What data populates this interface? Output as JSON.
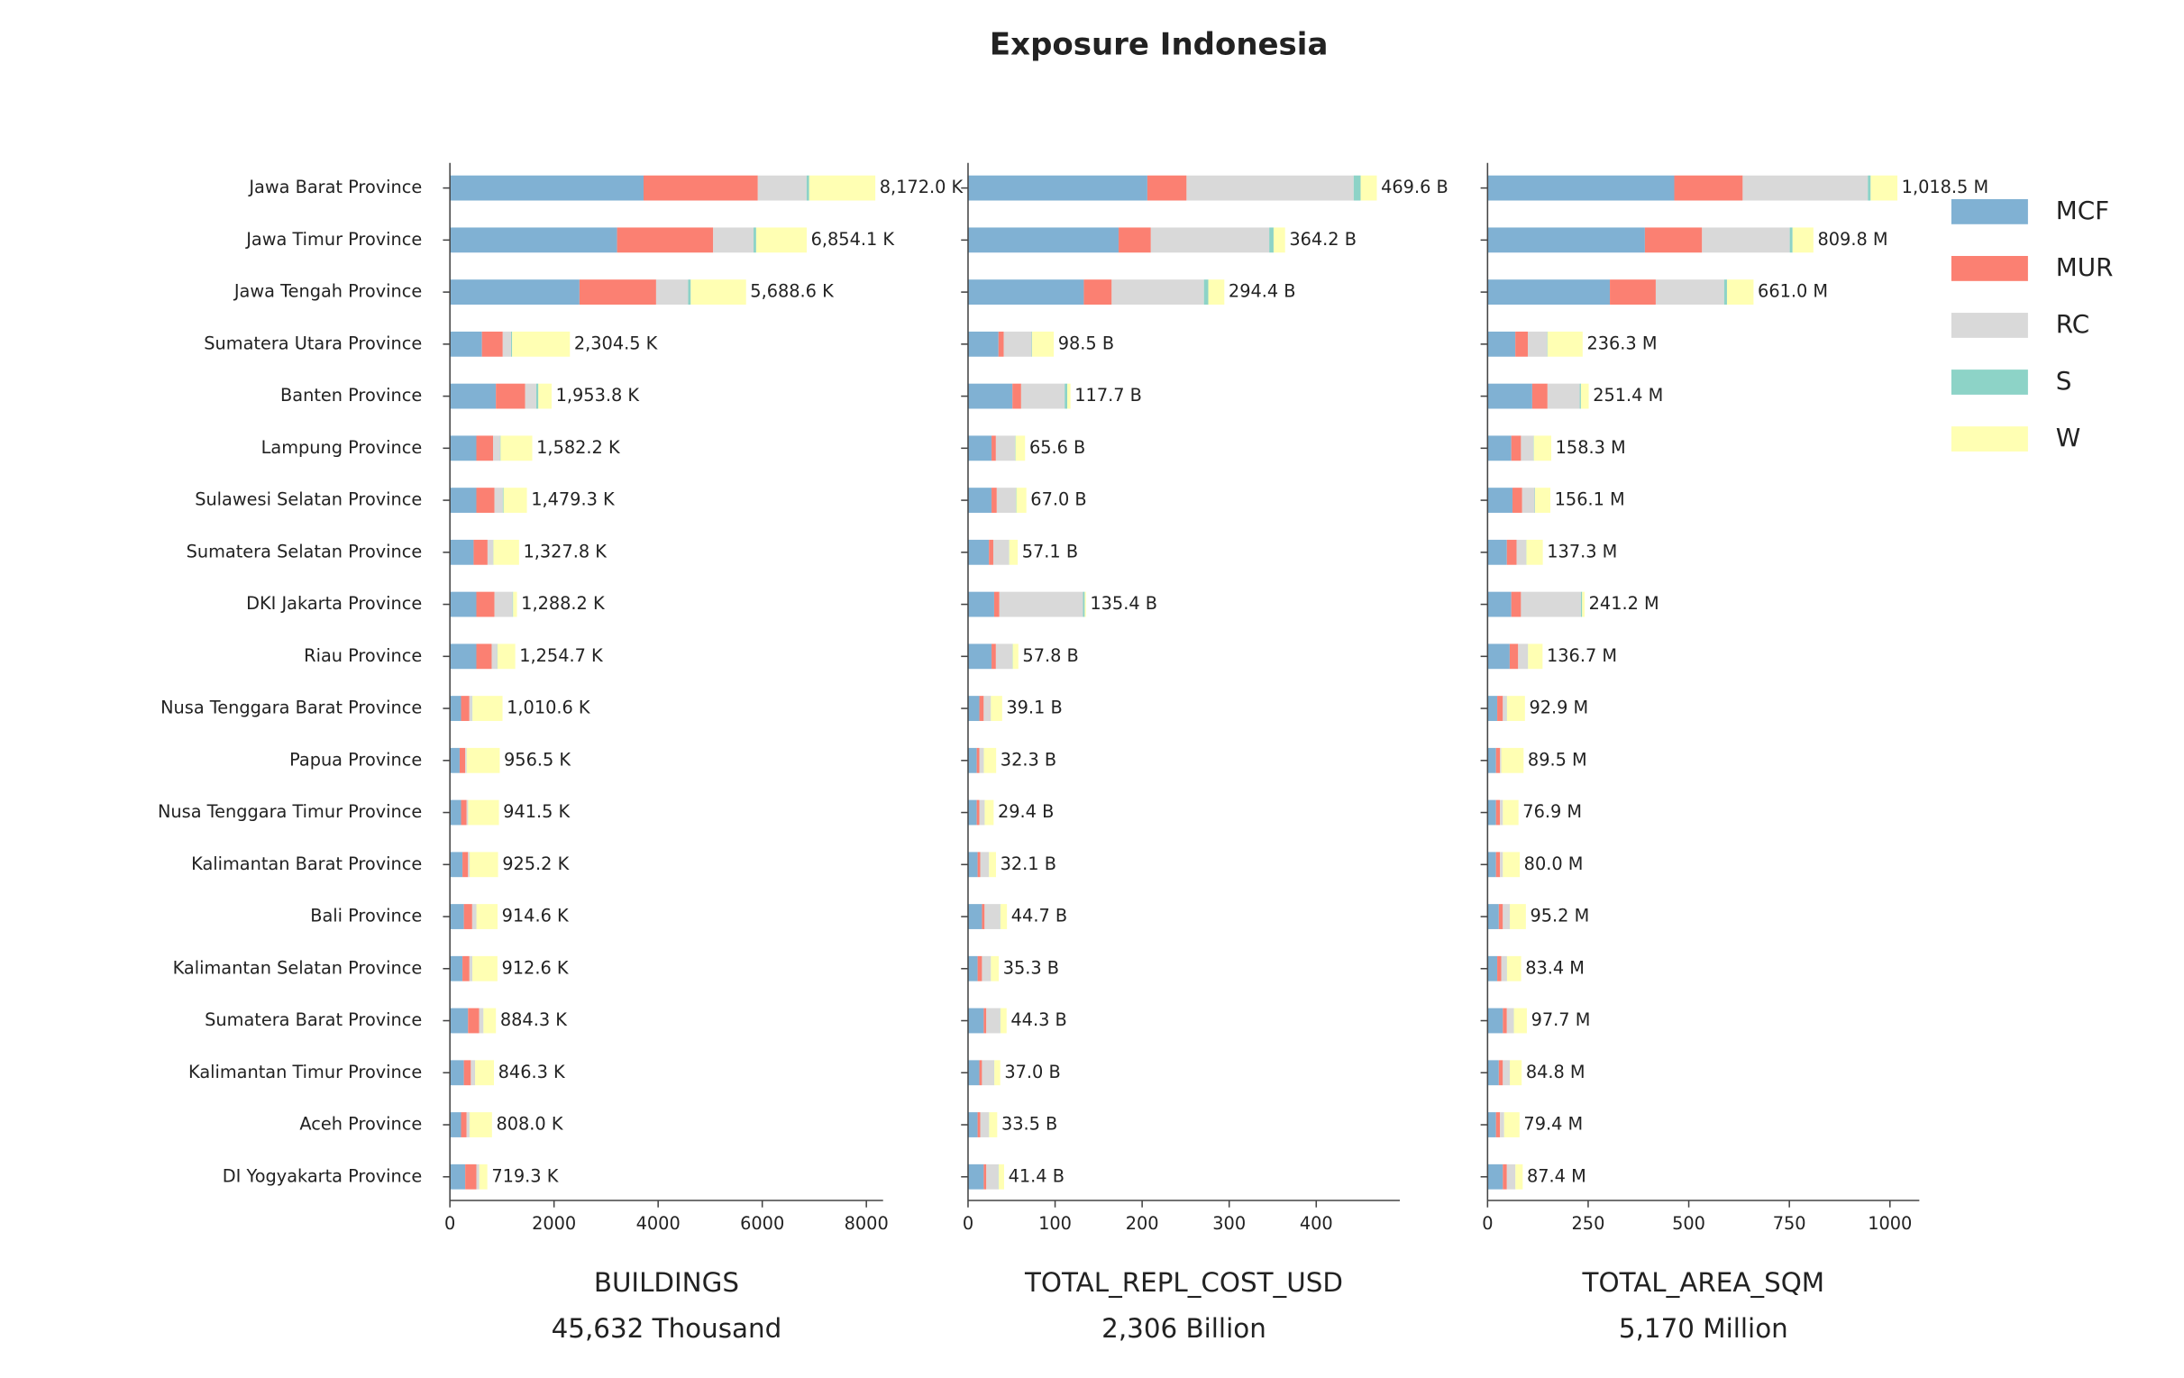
{
  "title": "Exposure Indonesia",
  "chart_data": [
    {
      "type": "bar",
      "orientation": "horizontal",
      "categories": [
        "Jawa Barat Province",
        "Jawa Timur Province",
        "Jawa Tengah Province",
        "Sumatera Utara Province",
        "Banten Province",
        "Lampung Province",
        "Sulawesi Selatan Province",
        "Sumatera Selatan Province",
        "DKI Jakarta Province",
        "Riau Province",
        "Nusa Tenggara Barat Province",
        "Papua Province",
        "Nusa Tenggara Timur Province",
        "Kalimantan Barat Province",
        "Bali Province",
        "Kalimantan Selatan Province",
        "Sumatera Barat Province",
        "Kalimantan Timur Province",
        "Aceh Province",
        "DI Yogyakarta Province"
      ],
      "series": [
        {
          "name": "MCF",
          "color": "#80b1d3",
          "values": [
            3720,
            3211,
            2489,
            615,
            883,
            508,
            508,
            455,
            508,
            508,
            214,
            187,
            214,
            241,
            268,
            241,
            348,
            268,
            214,
            294
          ]
        },
        {
          "name": "MUR",
          "color": "#fb8072",
          "values": [
            2195,
            1846,
            1472,
            400,
            562,
            321,
            348,
            268,
            348,
            294,
            160,
            107,
            107,
            107,
            160,
            134,
            214,
            134,
            107,
            214
          ]
        },
        {
          "name": "RC",
          "color": "#d9d9d9",
          "values": [
            937,
            776,
            615,
            160,
            214,
            134,
            160,
            107,
            348,
            107,
            54,
            27,
            27,
            27,
            80,
            54,
            80,
            80,
            54,
            54
          ]
        },
        {
          "name": "S",
          "color": "#8dd3c7",
          "values": [
            50,
            50,
            50,
            20,
            40,
            10,
            15,
            5,
            10,
            5,
            5,
            2,
            2,
            2,
            2,
            2,
            2,
            2,
            2,
            2
          ]
        },
        {
          "name": "W",
          "color": "#ffffb3",
          "values": [
            1270,
            971,
            1063,
            1110,
            255,
            609,
            448,
            493,
            74,
            341,
            578,
            634,
            592,
            548,
            405,
            482,
            240,
            362,
            431,
            155
          ]
        }
      ],
      "totals": [
        8172.0,
        6854.1,
        5688.6,
        2304.5,
        1953.8,
        1582.2,
        1479.3,
        1327.8,
        1288.2,
        1254.7,
        1010.6,
        956.5,
        941.5,
        925.2,
        914.6,
        912.6,
        884.3,
        846.3,
        808.0,
        719.3
      ],
      "total_labels": [
        "8,172.0 K",
        "6,854.1 K",
        "5,688.6 K",
        "2,304.5 K",
        "1,953.8 K",
        "1,582.2 K",
        "1,479.3 K",
        "1,327.8 K",
        "1,288.2 K",
        "1,254.7 K",
        "1,010.6 K",
        "956.5 K",
        "941.5 K",
        "925.2 K",
        "914.6 K",
        "912.6 K",
        "884.3 K",
        "846.3 K",
        "808.0 K",
        "719.3 K"
      ],
      "xlim": [
        0,
        8321
      ],
      "xticks": [
        0,
        2000,
        4000,
        6000,
        8000
      ],
      "xlabel": "BUILDINGS",
      "xlabel_sub": "45,632 Thousand"
    },
    {
      "type": "bar",
      "orientation": "horizontal",
      "series": [
        {
          "color": "#80b1d3",
          "values": [
            206,
            173,
            133,
            35,
            51,
            27,
            27,
            24,
            30,
            27,
            13,
            10,
            10,
            11,
            16,
            11,
            18,
            13,
            11,
            18
          ]
        },
        {
          "color": "#fb8072",
          "values": [
            45,
            37,
            32,
            6,
            10,
            5,
            6,
            5,
            6,
            5,
            5,
            3,
            3,
            3,
            3,
            5,
            3,
            3,
            3,
            3
          ]
        },
        {
          "color": "#d9d9d9",
          "values": [
            192,
            136,
            106,
            32,
            50,
            22,
            22,
            18,
            96,
            19,
            8,
            5,
            6,
            10,
            18,
            10,
            16,
            14,
            10,
            14
          ]
        },
        {
          "color": "#8dd3c7",
          "values": [
            8,
            5,
            5,
            0.5,
            3,
            0.5,
            0.5,
            0.3,
            2,
            0.3,
            0.2,
            0.1,
            0.1,
            0.1,
            0.2,
            0.2,
            0.2,
            0.2,
            0.2,
            0.2
          ]
        },
        {
          "color": "#ffffb3",
          "values": [
            18.6,
            13.2,
            18.4,
            25,
            3.7,
            11,
            11.5,
            9.8,
            1.4,
            6.5,
            13,
            14.2,
            10.3,
            8,
            7.5,
            9.1,
            7.1,
            6.8,
            9.3,
            6.2
          ]
        }
      ],
      "totals": [
        469.6,
        364.2,
        294.4,
        98.5,
        117.7,
        65.6,
        67.0,
        57.1,
        135.4,
        57.8,
        39.1,
        32.3,
        29.4,
        32.1,
        44.7,
        35.3,
        44.3,
        37.0,
        33.5,
        41.4
      ],
      "total_labels": [
        "469.6 B",
        "364.2 B",
        "294.4 B",
        "98.5 B",
        "117.7 B",
        "65.6 B",
        "67.0 B",
        "57.1 B",
        "135.4 B",
        "57.8 B",
        "39.1 B",
        "32.3 B",
        "29.4 B",
        "32.1 B",
        "44.7 B",
        "35.3 B",
        "44.3 B",
        "37.0 B",
        "33.5 B",
        "41.4 B"
      ],
      "xlim": [
        0,
        496
      ],
      "xticks": [
        0,
        100,
        200,
        300,
        400
      ],
      "xlabel": "TOTAL_REPL_COST_USD",
      "xlabel_sub": "2,306 Billion"
    },
    {
      "type": "bar",
      "orientation": "horizontal",
      "series": [
        {
          "color": "#80b1d3",
          "values": [
            464,
            391,
            304,
            69,
            111,
            59,
            62,
            48,
            59,
            55,
            24,
            21,
            21,
            21,
            28,
            24,
            38,
            28,
            21,
            38
          ]
        },
        {
          "color": "#fb8072",
          "values": [
            170,
            142,
            114,
            31,
            38,
            24,
            24,
            24,
            24,
            21,
            14,
            10,
            10,
            10,
            10,
            10,
            10,
            10,
            10,
            10
          ]
        },
        {
          "color": "#d9d9d9",
          "values": [
            311,
            218,
            170,
            48,
            80,
            31,
            31,
            24,
            149,
            24,
            10,
            3,
            7,
            7,
            17,
            14,
            17,
            17,
            10,
            21
          ]
        },
        {
          "color": "#8dd3c7",
          "values": [
            7,
            7,
            7,
            1,
            3,
            1,
            1,
            0.5,
            3,
            0.5,
            0.3,
            0.1,
            0.1,
            0.1,
            0.3,
            0.3,
            0.3,
            0.3,
            0.2,
            0.2
          ]
        },
        {
          "color": "#ffffb3",
          "values": [
            66.5,
            51.8,
            66,
            87.3,
            19.4,
            43.3,
            38.1,
            40.8,
            6.2,
            36.2,
            44.6,
            55.4,
            38.8,
            41.9,
            39.9,
            35.1,
            32.4,
            29.5,
            38.2,
            18.2
          ]
        }
      ],
      "totals": [
        1018.5,
        809.8,
        661.0,
        236.3,
        251.4,
        158.3,
        156.1,
        137.3,
        241.2,
        136.7,
        92.9,
        89.5,
        76.9,
        80.0,
        95.2,
        83.4,
        97.7,
        84.8,
        79.4,
        87.4
      ],
      "total_labels": [
        "1,018.5 M",
        "809.8 M",
        "661.0 M",
        "236.3 M",
        "251.4 M",
        "158.3 M",
        "156.1 M",
        "137.3 M",
        "241.2 M",
        "136.7 M",
        "92.9 M",
        "89.5 M",
        "76.9 M",
        "80.0 M",
        "95.2 M",
        "83.4 M",
        "97.7 M",
        "84.8 M",
        "79.4 M",
        "87.4 M"
      ],
      "xlim": [
        0,
        1073
      ],
      "xticks": [
        0,
        250,
        500,
        750,
        1000
      ],
      "xlabel": "TOTAL_AREA_SQM",
      "xlabel_sub": "5,170 Million"
    }
  ]
}
